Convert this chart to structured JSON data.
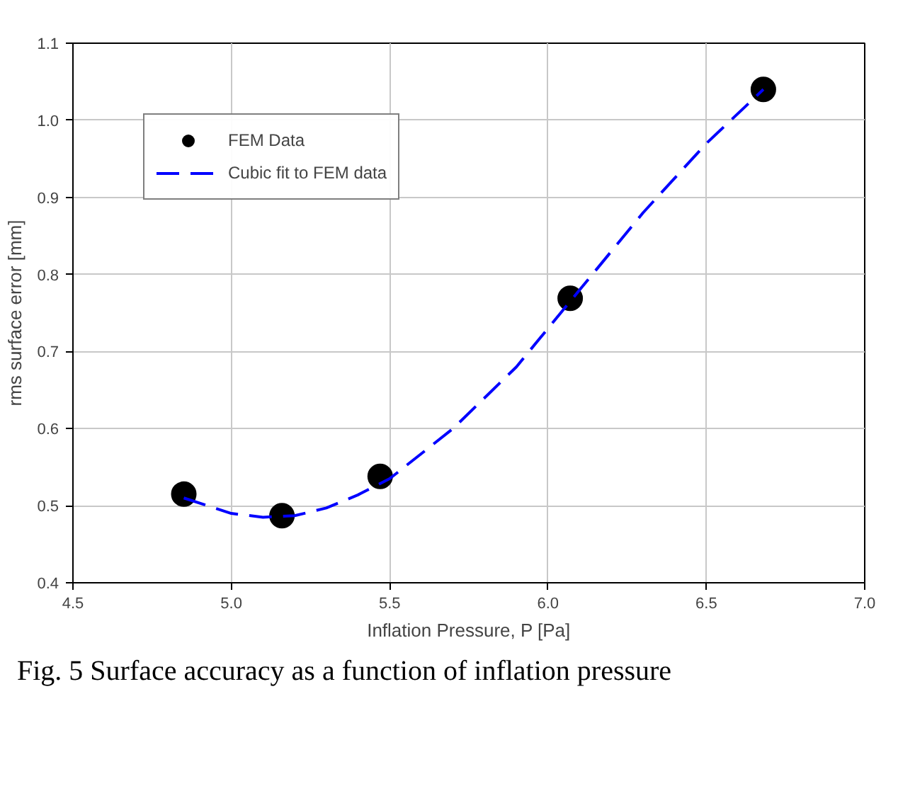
{
  "chart_data": {
    "type": "scatter",
    "xlabel": "Inflation Pressure, P [Pa]",
    "ylabel": "rms surface error [mm]",
    "xlim": [
      4.5,
      7.0
    ],
    "ylim": [
      0.4,
      1.1
    ],
    "xticks": [
      {
        "value": 4.5,
        "label": "4.5"
      },
      {
        "value": 5.0,
        "label": "5.0"
      },
      {
        "value": 5.5,
        "label": "5.5"
      },
      {
        "value": 6.0,
        "label": "6.0"
      },
      {
        "value": 6.5,
        "label": "6.5"
      },
      {
        "value": 7.0,
        "label": "7.0"
      }
    ],
    "yticks": [
      {
        "value": 0.4,
        "label": "0.4"
      },
      {
        "value": 0.5,
        "label": "0.5"
      },
      {
        "value": 0.6,
        "label": "0.6"
      },
      {
        "value": 0.7,
        "label": "0.7"
      },
      {
        "value": 0.8,
        "label": "0.8"
      },
      {
        "value": 0.9,
        "label": "0.9"
      },
      {
        "value": 1.0,
        "label": "1.0"
      },
      {
        "value": 1.1,
        "label": "1.1"
      }
    ],
    "grid": true,
    "legend": "top left",
    "series": [
      {
        "name": "FEM Data",
        "color": "#000000",
        "marker": "circle",
        "x": [
          4.85,
          5.16,
          5.47,
          6.07,
          6.68
        ],
        "values": [
          0.515,
          0.487,
          0.538,
          0.769,
          1.04
        ]
      },
      {
        "name": "Cubic fit to FEM data",
        "color": "#0000ff",
        "type": "line",
        "line_style": "dashed",
        "x": [
          4.85,
          5.0,
          5.1,
          5.2,
          5.3,
          5.4,
          5.5,
          5.7,
          5.9,
          6.1,
          6.3,
          6.5,
          6.68
        ],
        "values": [
          0.51,
          0.49,
          0.485,
          0.487,
          0.497,
          0.514,
          0.535,
          0.6,
          0.68,
          0.78,
          0.88,
          0.97,
          1.04
        ]
      }
    ],
    "annotations": [
      "Fig. 5 Surface accuracy as a function of inflation pressure"
    ]
  }
}
